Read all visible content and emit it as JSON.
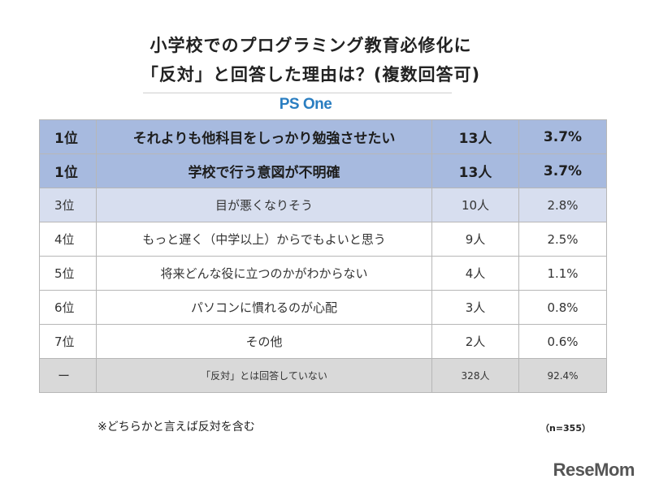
{
  "title": {
    "line1": "小学校でのプログラミング教育必修化に",
    "line2": "「反対」と回答した理由は？(複数回答可)"
  },
  "brand": "PS One",
  "rows": [
    {
      "rank": "1位",
      "item": "それよりも他科目をしっかり勉強させたい",
      "count": "13人",
      "percent": "3.7%"
    },
    {
      "rank": "1位",
      "item": "学校で行う意図が不明確",
      "count": "13人",
      "percent": "3.7%"
    },
    {
      "rank": "3位",
      "item": "目が悪くなりそう",
      "count": "10人",
      "percent": "2.8%"
    },
    {
      "rank": "4位",
      "item": "もっと遅く（中学以上）からでもよいと思う",
      "count": "9人",
      "percent": "2.5%"
    },
    {
      "rank": "5位",
      "item": "将来どんな役に立つのかがわからない",
      "count": "4人",
      "percent": "1.1%"
    },
    {
      "rank": "6位",
      "item": "パソコンに慣れるのが心配",
      "count": "3人",
      "percent": "0.8%"
    },
    {
      "rank": "7位",
      "item": "その他",
      "count": "2人",
      "percent": "0.6%"
    },
    {
      "rank": "ー",
      "item": "「反対」とは回答していない",
      "count": "328人",
      "percent": "92.4%"
    }
  ],
  "note": "※どちらかと言えば反対を含む",
  "sample_size": "（n=355）",
  "logo": "ReseMom",
  "colors": {
    "top_row": "#a7badf",
    "third_row": "#d7deef",
    "none_row": "#d9d9d9",
    "brand": "#2a7ec1"
  }
}
